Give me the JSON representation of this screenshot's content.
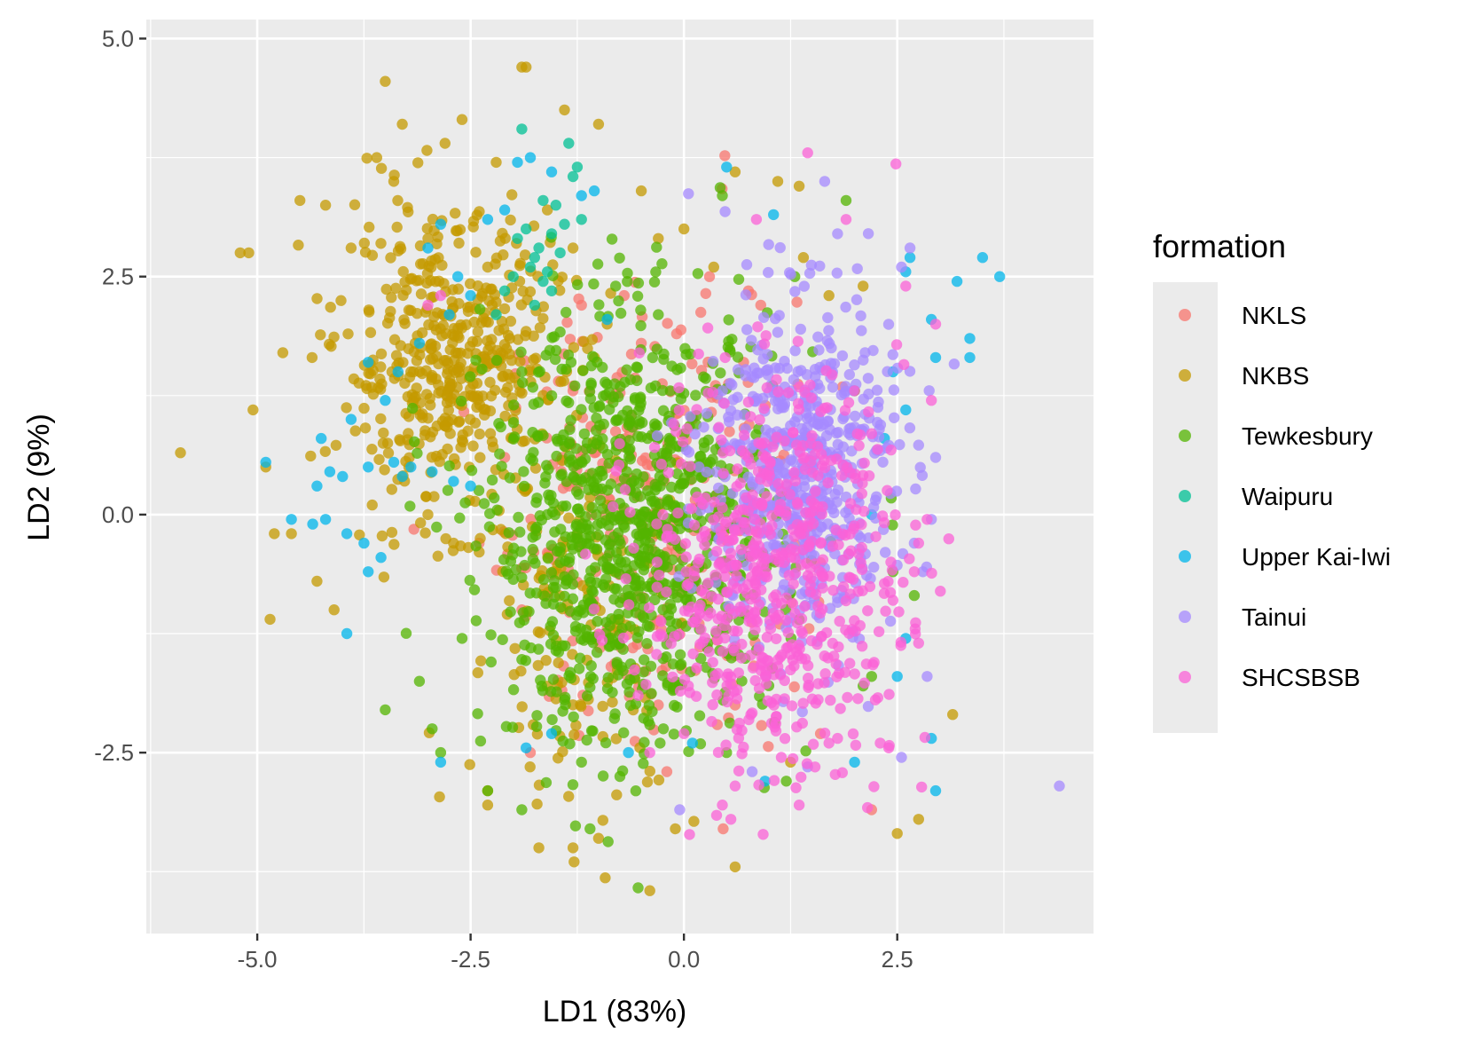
{
  "chart_data": {
    "type": "scatter",
    "xlabel": "LD1 (83%)",
    "ylabel": "LD2 (9%)",
    "xlim": [
      -6.3,
      4.8
    ],
    "ylim": [
      -4.4,
      5.2
    ],
    "x_ticks": [
      -5.0,
      -2.5,
      0.0,
      2.5
    ],
    "x_tick_labels": [
      "-5.0",
      "-2.5",
      "0.0",
      "2.5"
    ],
    "y_ticks": [
      -2.5,
      0.0,
      2.5,
      5.0
    ],
    "y_tick_labels": [
      "-2.5",
      "0.0",
      "2.5",
      "5.0"
    ],
    "grid": true,
    "panel_background": "#ebebeb",
    "point_alpha": 0.75,
    "legend": {
      "title": "formation",
      "position": "right"
    },
    "series": [
      {
        "name": "NKLS",
        "color": "#F8766D",
        "points": [
          [
            0.48,
            3.77
          ],
          [
            2.2,
            -3.1
          ],
          [
            0.46,
            -3.3
          ],
          [
            -1.2,
            2.2
          ],
          [
            -0.5,
            1.8
          ],
          [
            0.3,
            2.5
          ],
          [
            0.9,
            2.2
          ],
          [
            -1.6,
            -0.4
          ],
          [
            -2.1,
            0.6
          ],
          [
            -1.8,
            -2.5
          ],
          [
            -0.2,
            -2.7
          ],
          [
            0.6,
            -2.0
          ],
          [
            1.1,
            0.5
          ],
          [
            -0.9,
            -1.2
          ],
          [
            -0.4,
            0.0
          ],
          [
            0.2,
            -0.8
          ],
          [
            -1.3,
            1.3
          ],
          [
            -0.7,
            2.3
          ],
          [
            1.6,
            -2.3
          ],
          [
            0.1,
            1.0
          ],
          [
            -1.9,
            -1.0
          ],
          [
            -0.3,
            -2.0
          ],
          [
            0.7,
            1.6
          ],
          [
            -2.4,
            -0.3
          ]
        ],
        "cluster": {
          "cx": -0.4,
          "cy": 0.0,
          "sx": 0.85,
          "sy": 1.15,
          "n": 260
        }
      },
      {
        "name": "NKBS",
        "color": "#C49A00",
        "points": [
          [
            -5.9,
            0.65
          ],
          [
            -5.1,
            2.75
          ],
          [
            -5.2,
            2.75
          ],
          [
            -5.05,
            1.1
          ],
          [
            -4.85,
            -1.1
          ],
          [
            -4.9,
            0.5
          ],
          [
            -4.5,
            3.3
          ],
          [
            -4.2,
            3.25
          ],
          [
            -3.5,
            4.55
          ],
          [
            -3.3,
            4.1
          ],
          [
            -2.6,
            4.15
          ],
          [
            -1.9,
            4.7
          ],
          [
            -1.85,
            4.7
          ],
          [
            -1.4,
            4.25
          ],
          [
            -1.0,
            4.1
          ],
          [
            -2.8,
            3.9
          ],
          [
            -3.6,
            3.75
          ],
          [
            -3.4,
            3.5
          ],
          [
            -4.8,
            -0.2
          ],
          [
            -4.6,
            -0.2
          ],
          [
            -4.3,
            -0.7
          ],
          [
            -4.1,
            -1.0
          ],
          [
            -2.3,
            -2.9
          ],
          [
            -1.7,
            -3.5
          ],
          [
            -1.3,
            -3.5
          ],
          [
            -0.4,
            -3.95
          ],
          [
            0.6,
            -3.7
          ],
          [
            2.5,
            -3.35
          ],
          [
            2.75,
            -3.2
          ],
          [
            3.15,
            -2.1
          ],
          [
            1.25,
            -2.6
          ],
          [
            -1.0,
            -3.4
          ],
          [
            -0.1,
            -3.3
          ],
          [
            -2.3,
            -3.05
          ],
          [
            -3.0,
            0.0
          ],
          [
            -2.7,
            -0.3
          ],
          [
            -3.9,
            2.8
          ],
          [
            -4.7,
            1.7
          ],
          [
            -3.0,
            2.9
          ],
          [
            -2.2,
            3.7
          ],
          [
            -1.6,
            3.2
          ],
          [
            -0.5,
            3.4
          ],
          [
            0.0,
            3.0
          ],
          [
            0.6,
            3.6
          ],
          [
            1.1,
            3.5
          ],
          [
            1.35,
            3.45
          ],
          [
            0.35,
            2.6
          ],
          [
            1.4,
            2.7
          ],
          [
            1.7,
            2.3
          ],
          [
            2.1,
            2.4
          ],
          [
            -2.3,
            2.6
          ],
          [
            -1.3,
            2.8
          ],
          [
            -0.9,
            2.0
          ],
          [
            -0.3,
            2.9
          ],
          [
            -3.2,
            1.5
          ],
          [
            -2.0,
            1.0
          ]
        ],
        "cluster": {
          "cx": -2.75,
          "cy": 1.6,
          "sx": 0.65,
          "sy": 0.75,
          "n": 480
        },
        "cluster2": {
          "cx": -1.2,
          "cy": -1.2,
          "sx": 0.7,
          "sy": 1.0,
          "n": 140
        }
      },
      {
        "name": "Tewkesbury",
        "color": "#53B400",
        "points": [
          [
            -3.1,
            -1.75
          ],
          [
            -3.5,
            -2.05
          ],
          [
            -2.95,
            -2.25
          ],
          [
            -2.85,
            -2.5
          ],
          [
            -2.6,
            -1.3
          ],
          [
            -2.3,
            -2.9
          ],
          [
            -1.9,
            -3.1
          ],
          [
            -1.1,
            -3.3
          ],
          [
            -1.2,
            -2.6
          ],
          [
            -0.75,
            -2.75
          ],
          [
            0.5,
            -2.5
          ],
          [
            1.2,
            -2.8
          ],
          [
            1.9,
            3.3
          ],
          [
            2.0,
            1.3
          ],
          [
            2.2,
            -1.7
          ],
          [
            2.7,
            -0.85
          ],
          [
            2.45,
            -0.6
          ],
          [
            2.1,
            -1.8
          ],
          [
            1.3,
            2.5
          ],
          [
            0.45,
            3.35
          ],
          [
            -0.3,
            2.1
          ],
          [
            -0.8,
            2.4
          ],
          [
            -1.9,
            1.5
          ],
          [
            -1.6,
            0.0
          ]
        ],
        "cluster": {
          "cx": -0.6,
          "cy": -0.2,
          "sx": 0.85,
          "sy": 1.1,
          "n": 950
        }
      },
      {
        "name": "Waipuru",
        "color": "#00C094",
        "points": [
          [
            -1.9,
            4.05
          ],
          [
            -1.35,
            3.9
          ],
          [
            -1.25,
            3.65
          ],
          [
            -1.3,
            3.55
          ],
          [
            -1.65,
            3.3
          ],
          [
            -1.5,
            3.25
          ],
          [
            -1.55,
            2.95
          ],
          [
            -1.7,
            2.8
          ],
          [
            -1.8,
            2.6
          ],
          [
            -1.6,
            2.55
          ],
          [
            -1.75,
            2.7
          ],
          [
            -1.95,
            2.9
          ],
          [
            -1.45,
            2.75
          ],
          [
            -2.1,
            2.35
          ],
          [
            -1.75,
            2.2
          ],
          [
            -1.85,
            3.0
          ],
          [
            -2.0,
            2.5
          ],
          [
            -1.55,
            2.35
          ],
          [
            -1.4,
            3.05
          ],
          [
            -1.2,
            3.1
          ],
          [
            -2.2,
            2.1
          ],
          [
            -1.65,
            2.45
          ]
        ]
      },
      {
        "name": "Upper Kai-Iwi",
        "color": "#00B6EB",
        "points": [
          [
            3.5,
            2.7
          ],
          [
            3.7,
            2.5
          ],
          [
            3.2,
            2.45
          ],
          [
            3.35,
            1.85
          ],
          [
            3.35,
            1.65
          ],
          [
            2.95,
            1.65
          ],
          [
            2.65,
            2.7
          ],
          [
            2.6,
            2.55
          ],
          [
            2.9,
            2.05
          ],
          [
            -1.95,
            3.7
          ],
          [
            -1.8,
            3.75
          ],
          [
            -1.55,
            3.6
          ],
          [
            -1.2,
            3.35
          ],
          [
            -1.05,
            3.4
          ],
          [
            -2.1,
            3.2
          ],
          [
            -2.3,
            3.1
          ],
          [
            -2.85,
            3.05
          ],
          [
            -3.0,
            2.8
          ],
          [
            -2.65,
            2.5
          ],
          [
            -2.75,
            2.1
          ],
          [
            -3.1,
            1.8
          ],
          [
            -3.35,
            1.5
          ],
          [
            -3.7,
            1.6
          ],
          [
            -3.9,
            1.0
          ],
          [
            -3.5,
            1.2
          ],
          [
            -4.25,
            0.8
          ],
          [
            -4.15,
            0.45
          ],
          [
            -4.3,
            0.3
          ],
          [
            -4.0,
            0.4
          ],
          [
            -3.7,
            0.5
          ],
          [
            -3.4,
            0.55
          ],
          [
            -3.2,
            0.5
          ],
          [
            -3.3,
            0.4
          ],
          [
            -2.95,
            0.45
          ],
          [
            -2.7,
            0.35
          ],
          [
            -2.5,
            0.3
          ],
          [
            -4.9,
            0.55
          ],
          [
            -4.6,
            -0.05
          ],
          [
            -4.35,
            -0.1
          ],
          [
            -4.2,
            -0.05
          ],
          [
            -3.95,
            -0.2
          ],
          [
            -3.75,
            -0.3
          ],
          [
            -3.55,
            -0.45
          ],
          [
            -3.7,
            -0.6
          ],
          [
            -3.95,
            -1.25
          ],
          [
            -2.85,
            -2.6
          ],
          [
            -1.85,
            -2.45
          ],
          [
            -1.55,
            -2.3
          ],
          [
            -0.65,
            -2.5
          ],
          [
            0.1,
            -2.4
          ],
          [
            0.95,
            -2.8
          ],
          [
            2.0,
            -2.6
          ],
          [
            2.95,
            -2.9
          ],
          [
            2.9,
            -2.35
          ],
          [
            2.5,
            -1.7
          ],
          [
            2.6,
            -1.3
          ],
          [
            2.2,
            0.0
          ],
          [
            2.35,
            0.8
          ],
          [
            2.45,
            1.5
          ],
          [
            2.6,
            1.1
          ],
          [
            1.05,
            3.15
          ],
          [
            0.5,
            3.65
          ],
          [
            -0.9,
            2.05
          ],
          [
            -2.5,
            2.3
          ]
        ]
      },
      {
        "name": "Tainui",
        "color": "#A58AFF",
        "points": [
          [
            4.4,
            -2.85
          ],
          [
            2.65,
            2.8
          ],
          [
            2.55,
            2.6
          ],
          [
            1.65,
            3.5
          ],
          [
            1.8,
            2.95
          ],
          [
            2.9,
            -0.05
          ],
          [
            2.7,
            -0.3
          ],
          [
            2.8,
            -0.6
          ],
          [
            2.55,
            -2.55
          ],
          [
            1.45,
            -2.65
          ],
          [
            -0.05,
            -3.1
          ],
          [
            0.8,
            -2.7
          ],
          [
            2.85,
            -1.7
          ],
          [
            2.95,
            0.6
          ]
        ],
        "cluster": {
          "cx": 1.35,
          "cy": 0.5,
          "sx": 0.55,
          "sy": 0.9,
          "n": 560
        }
      },
      {
        "name": "SHCSBSB",
        "color": "#FB61D7",
        "points": [
          [
            1.45,
            3.8
          ],
          [
            1.9,
            3.1
          ],
          [
            0.85,
            3.1
          ],
          [
            2.6,
            2.4
          ],
          [
            2.95,
            2.0
          ],
          [
            2.85,
            -0.05
          ],
          [
            2.75,
            -0.3
          ],
          [
            2.7,
            -0.6
          ],
          [
            2.75,
            -1.35
          ],
          [
            2.3,
            -2.4
          ],
          [
            2.4,
            -2.45
          ],
          [
            1.7,
            -2.4
          ],
          [
            1.35,
            -3.05
          ],
          [
            0.6,
            -2.85
          ],
          [
            0.45,
            -3.05
          ],
          [
            0.55,
            -3.2
          ],
          [
            0.0,
            -2.3
          ],
          [
            -0.4,
            -2.5
          ],
          [
            -3.0,
            2.2
          ],
          [
            -2.85,
            2.3
          ],
          [
            1.8,
            -2.35
          ],
          [
            2.0,
            1.3
          ],
          [
            2.2,
            0.85
          ],
          [
            2.9,
            1.2
          ]
        ],
        "cluster": {
          "cx": 1.05,
          "cy": -0.6,
          "sx": 0.75,
          "sy": 1.0,
          "n": 620
        }
      }
    ]
  }
}
